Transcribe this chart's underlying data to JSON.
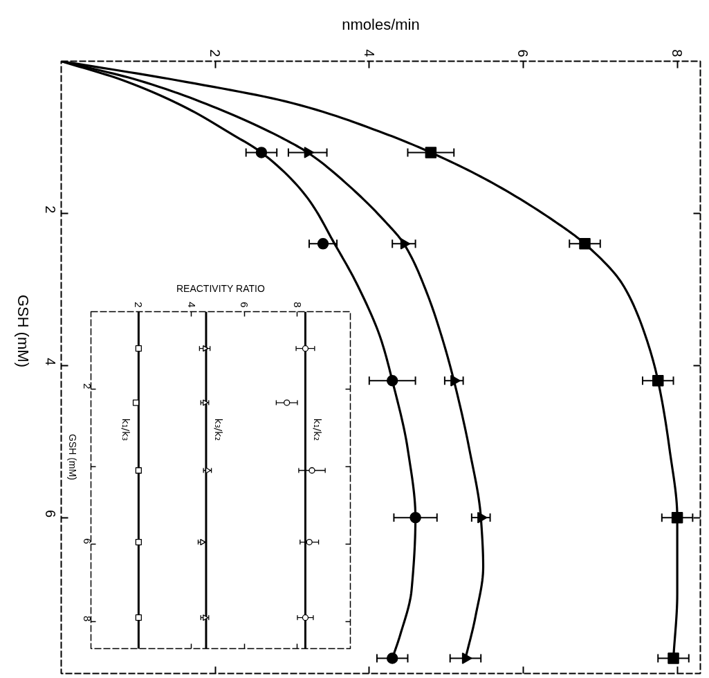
{
  "chart_data": [
    {
      "type": "line",
      "xlabel": "nmoles/min",
      "ylabel": "GSH (mM)",
      "xlim": [
        0,
        8.3
      ],
      "xticks": [
        2,
        4,
        6,
        8
      ],
      "ylim": [
        8.05,
        0
      ],
      "yticks": [
        2,
        4,
        6
      ],
      "grid": false,
      "series": [
        {
          "type": "line",
          "color": "#000000",
          "x": [
            0,
            0.8,
            1.6,
            2.2,
            2.6,
            3.2,
            3.55,
            3.85,
            4.15,
            4.3,
            4.5,
            4.6,
            4.55,
            4.4,
            4.3
          ],
          "values": [
            0,
            0.25,
            0.6,
            0.95,
            1.2,
            1.8,
            2.4,
            2.95,
            3.65,
            4.2,
            5.1,
            6.0,
            6.95,
            7.55,
            7.85
          ]
        },
        {
          "type": "line",
          "color": "#000000",
          "x": [
            0,
            1.0,
            2.1,
            2.85,
            3.2,
            3.75,
            4.2,
            4.45,
            4.75,
            4.95,
            5.1,
            5.3,
            5.45,
            5.48,
            5.38,
            5.25
          ],
          "values": [
            0,
            0.25,
            0.65,
            1.0,
            1.2,
            1.65,
            2.1,
            2.4,
            3.05,
            3.65,
            4.2,
            5.1,
            6.0,
            6.65,
            7.3,
            7.85
          ]
        },
        {
          "type": "line",
          "color": "#000000",
          "x": [
            0,
            1.5,
            3.0,
            4.2,
            4.8,
            5.6,
            6.4,
            6.8,
            7.3,
            7.6,
            7.75,
            7.9,
            8.0,
            8.0,
            7.95
          ],
          "values": [
            0,
            0.25,
            0.55,
            0.95,
            1.2,
            1.6,
            2.1,
            2.4,
            2.95,
            3.65,
            4.2,
            5.1,
            6.0,
            7.0,
            7.85
          ]
        },
        {
          "type": "scatter",
          "color": "#000000",
          "marker": "circle",
          "x": [
            2.6,
            3.4,
            4.3,
            4.6,
            4.3
          ],
          "values": [
            1.2,
            2.4,
            4.2,
            6.0,
            7.85
          ],
          "xerrors": [
            0.2,
            0.18,
            0.3,
            0.28,
            0.2
          ]
        },
        {
          "type": "scatter",
          "color": "#000000",
          "marker": "triangle",
          "x": [
            3.2,
            4.45,
            5.1,
            5.45,
            5.25
          ],
          "values": [
            1.2,
            2.4,
            4.2,
            6.0,
            7.85
          ],
          "xerrors": [
            0.25,
            0.15,
            0.12,
            0.12,
            0.2
          ]
        },
        {
          "type": "scatter",
          "color": "#000000",
          "marker": "square",
          "x": [
            4.8,
            6.8,
            7.75,
            8.0,
            7.95
          ],
          "values": [
            1.2,
            2.4,
            4.2,
            6.0,
            7.85
          ],
          "xerrors": [
            0.3,
            0.2,
            0.2,
            0.2,
            0.2
          ]
        }
      ]
    },
    {
      "type": "scatter",
      "xlabel": "REACTIVITY RATIO",
      "ylabel": "GSH (mM)",
      "xlim": [
        0.2,
        10
      ],
      "xticks": [
        2,
        4,
        6,
        8
      ],
      "ylim": [
        8.7,
        0
      ],
      "yticks": [
        2,
        {
          "value": 4,
          "label": null
        },
        6,
        8
      ],
      "grid": false,
      "ref_lines": [
        {
          "axis": "x",
          "value": 2.0,
          "label": "k₁/k₃"
        },
        {
          "axis": "x",
          "value": 4.55,
          "label": "k₃/k₂"
        },
        {
          "axis": "x",
          "value": 8.3,
          "label": "k₁/k₂"
        }
      ],
      "series": [
        {
          "color": "#000000",
          "marker": "square",
          "x": [
            2.0,
            1.9,
            2.0,
            2.0,
            2.0
          ],
          "values": [
            0.95,
            2.35,
            4.1,
            5.95,
            7.9
          ]
        },
        {
          "color": "#000000",
          "marker": "triangle",
          "x": [
            4.5,
            4.5,
            4.6,
            4.4,
            4.5
          ],
          "values": [
            0.95,
            2.35,
            4.1,
            5.95,
            7.9
          ],
          "xerrors": [
            0.2,
            0.15,
            0.15,
            0.15,
            0.15
          ]
        },
        {
          "color": "#000000",
          "marker": "circle",
          "x": [
            8.3,
            7.6,
            8.55,
            8.45,
            8.3
          ],
          "values": [
            0.95,
            2.35,
            4.1,
            5.95,
            7.9
          ],
          "xerrors": [
            0.35,
            0.4,
            0.5,
            0.35,
            0.3
          ]
        }
      ]
    }
  ]
}
